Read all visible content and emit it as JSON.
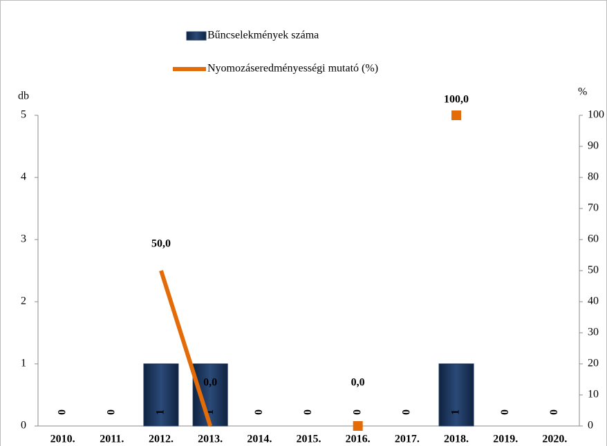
{
  "chart_data": {
    "type": "bar-line",
    "categories": [
      "2010.",
      "2011.",
      "2012.",
      "2013.",
      "2014.",
      "2015.",
      "2016.",
      "2017.",
      "2018.",
      "2019.",
      "2020."
    ],
    "series": [
      {
        "name": "Bűncselekmények száma",
        "type": "bar",
        "color": "#1f3864",
        "values": [
          0,
          0,
          1,
          1,
          0,
          0,
          0,
          0,
          1,
          0,
          0
        ]
      },
      {
        "name": "Nyomozáseredményességi mutató (%)",
        "type": "line",
        "color": "#e36c09",
        "axis": "y2",
        "values": [
          null,
          null,
          50,
          0,
          null,
          null,
          0,
          null,
          100,
          null,
          null
        ],
        "value_labels": [
          null,
          null,
          "50,0",
          "0,0",
          null,
          null,
          "0,0",
          null,
          "100,0",
          null,
          null
        ]
      }
    ],
    "ylabel": "db",
    "y2label": "%",
    "ylim": [
      0,
      5
    ],
    "yticks": [
      0,
      1,
      2,
      3,
      4,
      5
    ],
    "y2lim": [
      0,
      100
    ],
    "y2ticks": [
      0,
      10,
      20,
      30,
      40,
      50,
      60,
      70,
      80,
      90,
      100
    ],
    "legend": "top"
  }
}
